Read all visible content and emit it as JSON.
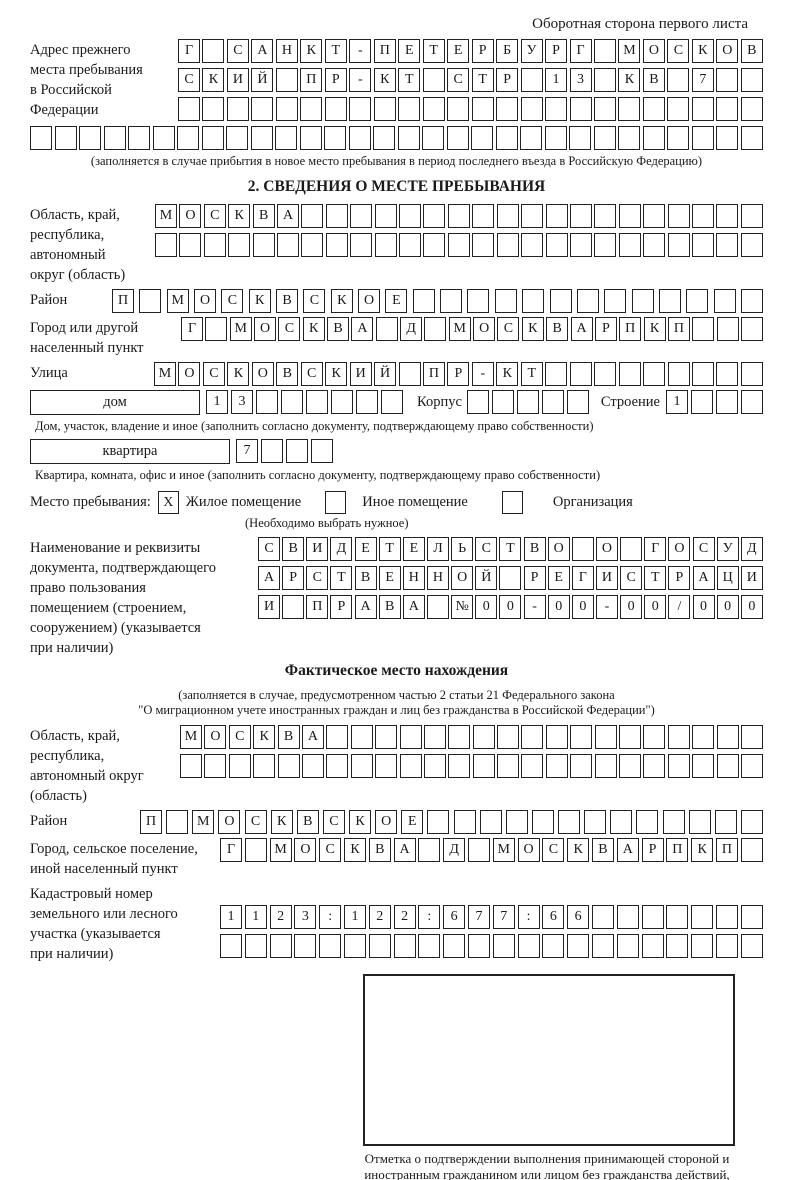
{
  "note": "Оборотная сторона первого листа",
  "prev_address": {
    "label": [
      "Адрес прежнего",
      "места пребывания",
      "в Российской",
      "Федерации"
    ],
    "rows": [
      {
        "text": "Г САНКТ-ПЕТЕРБУРГ МОСКОВ",
        "count": 24
      },
      {
        "text": "СКИЙ ПР-КТ СТР 13 КВ 7",
        "count": 24
      },
      {
        "text": "",
        "count": 24
      }
    ],
    "full_row": {
      "text": "",
      "count": 30
    },
    "caption": "(заполняется в случае прибытия в новое место пребывания в период последнего въезда в Российскую Федерацию)"
  },
  "section2": {
    "title": "2. СВЕДЕНИЯ О МЕСТЕ ПРЕБЫВАНИЯ",
    "oblast": {
      "label": [
        "Область, край,",
        "республика,",
        "автономный",
        "округ (область)"
      ],
      "rows": [
        {
          "text": "МОСКВА",
          "count": 25
        },
        {
          "text": "",
          "count": 25
        }
      ]
    },
    "raion": {
      "label": "Район",
      "cells": {
        "text": "П МОСКВСКОЕ",
        "count": 24
      }
    },
    "gorod": {
      "label": [
        "Город или другой",
        "населенный пункт"
      ],
      "cells": {
        "text": "Г МОСКВА Д МОСКВАРПКП",
        "count": 24
      }
    },
    "ulitsa": {
      "label": "Улица",
      "cells": {
        "text": "МОСКОВСКИЙ ПР-КТ",
        "count": 25
      }
    },
    "dom": {
      "box_label": "дом",
      "cells": {
        "text": "13",
        "count": 8
      },
      "korpus_label": "Корпус",
      "korpus_cells": {
        "text": "",
        "count": 5
      },
      "stroenie_label": "Строение",
      "stroenie_cells": {
        "text": "1",
        "count": 4
      },
      "caption": "Дом, участок, владение и иное (заполнить согласно документу, подтверждающему право собственности)"
    },
    "kvartira": {
      "box_label": "квартира",
      "cells": {
        "text": "7",
        "count": 4
      },
      "caption": "Квартира, комната, офис и иное (заполнить согласно документу, подтверждающему право собственности)"
    },
    "stay": {
      "label": "Место пребывания:",
      "options": [
        {
          "label": "Жилое помещение",
          "checked": "X"
        },
        {
          "label": "Иное помещение",
          "checked": ""
        },
        {
          "label": "Организация",
          "checked": ""
        }
      ],
      "note": "(Необходимо выбрать нужное)"
    },
    "doc": {
      "label": [
        "Наименование и реквизиты",
        "документа, подтверждающего",
        "право пользования",
        "помещением (строением,",
        "сооружением) (указывается",
        "при наличии)"
      ],
      "rows": [
        {
          "text": "СВИДЕТЕЛЬСТВО О ГОСУД",
          "count": 21
        },
        {
          "text": "АРСТВЕННОЙ РЕГИСТРАЦИ",
          "count": 21
        },
        {
          "text": "И ПРАВА №00-00-00/000",
          "count": 21
        }
      ]
    }
  },
  "fact": {
    "title": "Фактическое место нахождения",
    "caption_line1": "(заполняется в случае, предусмотренном частью 2 статьи 21 Федерального закона",
    "caption_line2": "\"О миграционном учете иностранных граждан и лиц без гражданства в Российской Федерации\")",
    "oblast": {
      "label": [
        "Область, край,",
        "республика,",
        "автономный округ",
        "(область)"
      ],
      "rows": [
        {
          "text": "МОСКВА",
          "count": 24
        },
        {
          "text": "",
          "count": 24
        }
      ]
    },
    "raion": {
      "label": "Район",
      "cells": {
        "text": "П МОСКВСКОЕ",
        "count": 24
      }
    },
    "gorod": {
      "label": [
        "Город, сельское поселение,",
        "иной населенный пункт"
      ],
      "cells": {
        "text": "Г МОСКВА Д МОСКВАРПКП",
        "count": 22
      }
    },
    "kadastr": {
      "label": [
        "Кадастровый номер",
        "земельного или лесного",
        "участка (указывается",
        "при наличии)"
      ],
      "rows": [
        {
          "text": "1123:122:677:66",
          "count": 22
        },
        {
          "text": "",
          "count": 22
        }
      ]
    },
    "stamp_caption": "Отметка о подтверждении выполнения принимающей стороной и иностранным гражданином или лицом без гражданства действий, необходимых для его постановки на учет по месту пребывания"
  }
}
